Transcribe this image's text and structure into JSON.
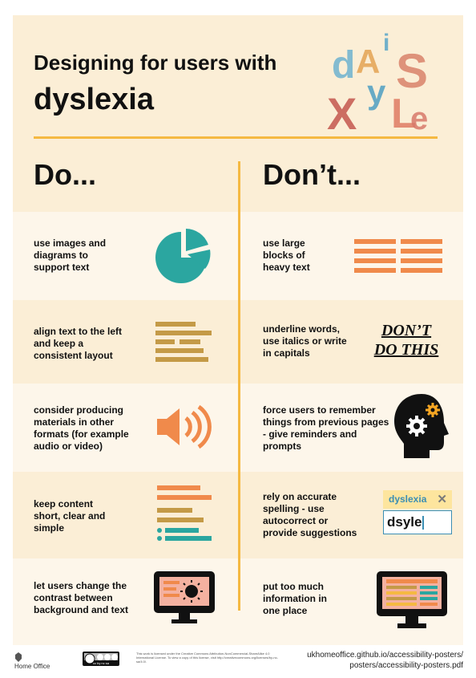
{
  "poster": {
    "title_line1": "Designing for users with",
    "title_line2": "dyslexia",
    "do_heading": "Do...",
    "dont_heading": "Don’t...",
    "logo_letters": [
      "d",
      "A",
      "i",
      "S",
      "y",
      "X",
      "L",
      "e"
    ],
    "colors": {
      "background": "#fbeed6",
      "accent": "#f5b942",
      "teal": "#2ba6a0",
      "orange": "#f08a4b",
      "brown": "#c49a47",
      "blue": "#3b8eb3"
    }
  },
  "do_items": [
    {
      "text": "use images and diagrams to support text",
      "icon": "pie-chart-icon"
    },
    {
      "text": "align text to the left and keep a consistent layout",
      "icon": "left-aligned-text-icon"
    },
    {
      "text": "consider producing materials in other formats (for example audio or video)",
      "icon": "speaker-icon"
    },
    {
      "text": "keep content short, clear and simple",
      "icon": "short-list-icon"
    },
    {
      "text": "let users change the contrast between background and text",
      "icon": "contrast-monitor-icon"
    }
  ],
  "dont_items": [
    {
      "text": "use large blocks of heavy text",
      "icon": "heavy-text-blocks-icon"
    },
    {
      "text": "underline words, use italics or write in capitals",
      "icon": "dont-do-this-example"
    },
    {
      "text": "force users to remember things from previous pages - give reminders and prompts",
      "icon": "head-gears-icon"
    },
    {
      "text": "rely on accurate spelling - use autocorrect or provide suggestions",
      "icon": "spelling-suggestion-icon"
    },
    {
      "text": "put too much information in one place",
      "icon": "cluttered-monitor-icon"
    }
  ],
  "dont_example": {
    "line1": "DON’T",
    "line2": "DO THIS"
  },
  "spelling_example": {
    "suggestion": "dyslexia",
    "typed": "dsyle"
  },
  "footer": {
    "org": "Home Office",
    "license_badge": "cc by nc sa",
    "license_text": "This work is licensed under the Creative Commons Attribution-NonCommercial-ShareAlike 4.0 International License. To view a copy of this license, visit http://creativecommons.org/licenses/by-nc-sa/4.0/.",
    "url_line1": "ukhomeoffice.github.io/accessibility-posters/",
    "url_line2": "posters/accessibility-posters.pdf"
  }
}
